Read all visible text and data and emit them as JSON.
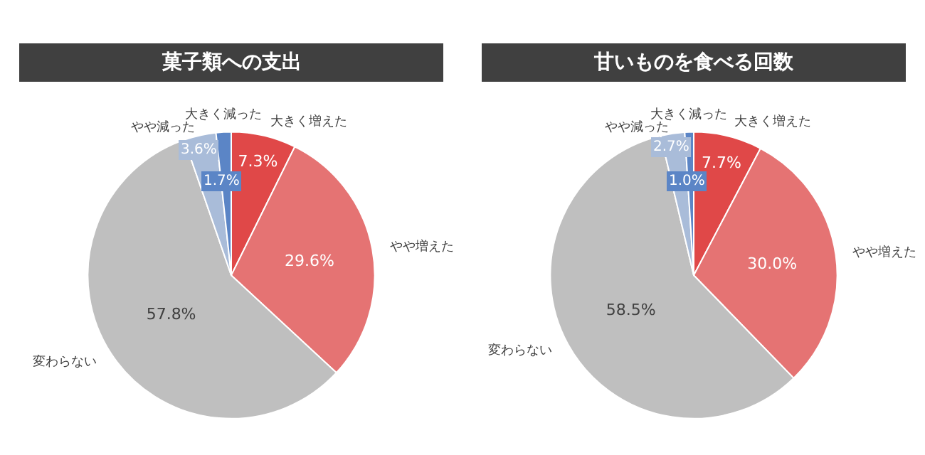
{
  "chart_data": [
    {
      "type": "pie",
      "title": "菓子類への支出",
      "categories": [
        "大きく増えた",
        "やや増えた",
        "変わらない",
        "やや減った",
        "大きく減った"
      ],
      "values": [
        7.3,
        29.6,
        57.8,
        3.6,
        1.7
      ],
      "value_labels": [
        "7.3%",
        "29.6%",
        "57.8%",
        "3.6%",
        "1.7%"
      ],
      "colors": [
        "#e04848",
        "#e57373",
        "#bfbfbf",
        "#a9bcd9",
        "#5b85c6"
      ],
      "legend": false
    },
    {
      "type": "pie",
      "title": "甘いものを食べる回数",
      "categories": [
        "大きく増えた",
        "やや増えた",
        "変わらない",
        "やや減った",
        "大きく減った"
      ],
      "values": [
        7.7,
        30.0,
        58.5,
        2.7,
        1.0
      ],
      "value_labels": [
        "7.7%",
        "30.0%",
        "58.5%",
        "2.7%",
        "1.0%"
      ],
      "colors": [
        "#e04848",
        "#e57373",
        "#bfbfbf",
        "#a9bcd9",
        "#5b85c6"
      ],
      "legend": false
    }
  ]
}
